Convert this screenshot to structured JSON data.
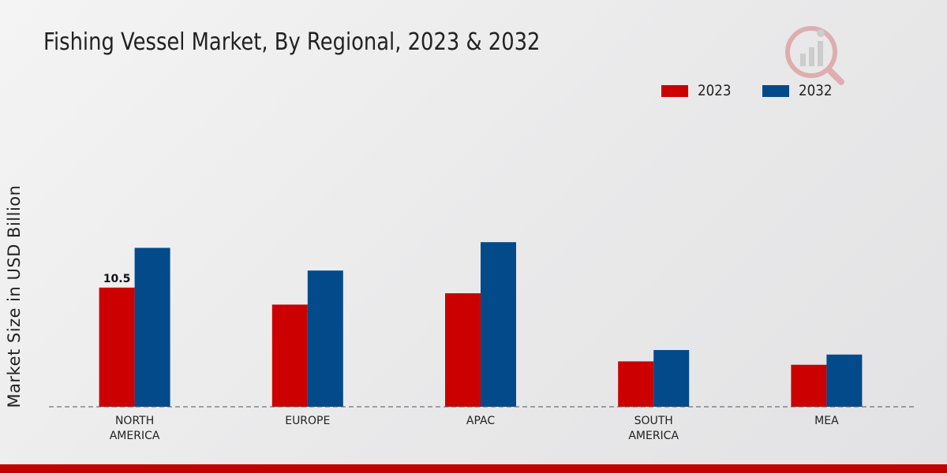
{
  "title": "Fishing Vessel Market, By Regional, 2023 & 2032",
  "logo": {
    "icon": "market-research-logo-icon"
  },
  "legend": [
    {
      "label": "2023",
      "color": "#cc0000"
    },
    {
      "label": "2032",
      "color": "#034a8b"
    }
  ],
  "chart_data": {
    "type": "bar",
    "title": "Fishing Vessel Market, By Regional, 2023 & 2032",
    "xlabel": "",
    "ylabel": "Market Size in USD Billion",
    "categories": [
      [
        "NORTH",
        "AMERICA"
      ],
      [
        "EUROPE"
      ],
      [
        "APAC"
      ],
      [
        "SOUTH",
        "AMERICA"
      ],
      [
        "MEA"
      ]
    ],
    "series": [
      {
        "name": "2023",
        "color": "#cc0000",
        "values": [
          10.5,
          9.0,
          10.0,
          4.0,
          3.7
        ]
      },
      {
        "name": "2032",
        "color": "#034a8b",
        "values": [
          14.0,
          12.0,
          14.5,
          5.0,
          4.6
        ]
      }
    ],
    "data_labels": [
      {
        "series": 0,
        "index": 0,
        "text": "10.5"
      }
    ],
    "ylim": [
      0,
      25
    ],
    "grid": false,
    "legend_position": "top-right"
  },
  "colors": {
    "accent_bar": "#c00000",
    "baseline": "#555555"
  }
}
